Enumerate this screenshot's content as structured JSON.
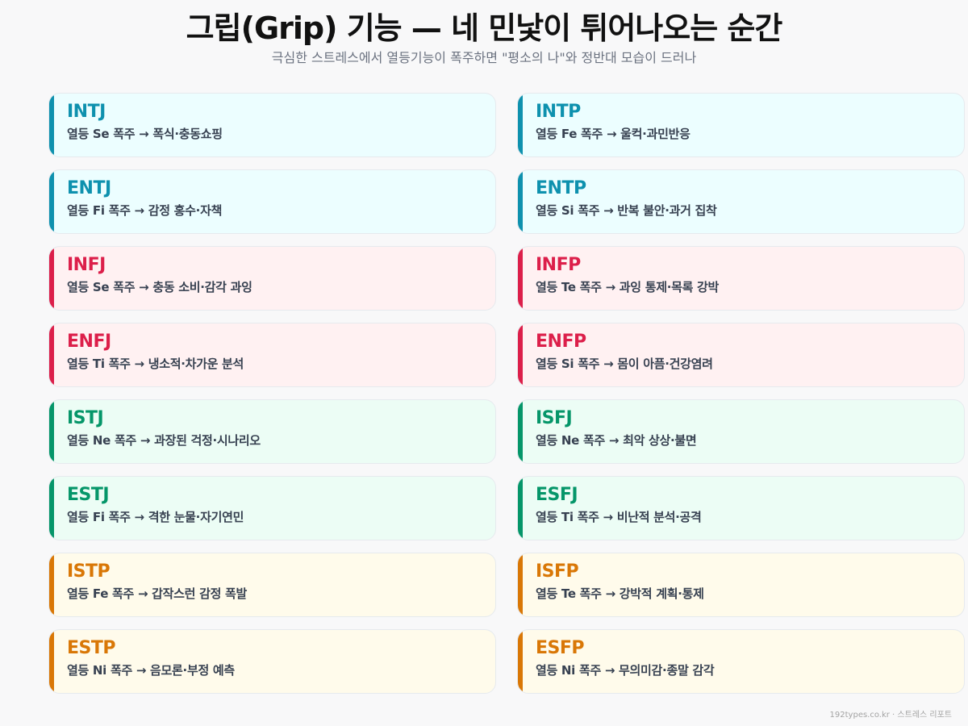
{
  "header": {
    "title": "그립(Grip) 기능 — 네 민낯이 튀어나오는 순간",
    "subtitle": "극심한 스트레스에서 열등기능이 폭주하면 \"평소의 나\"와 정반대 모습이 드러나"
  },
  "colors": {
    "teal": "#0e91ae",
    "red": "#dc1f4a",
    "green": "#059669",
    "amber": "#d97706"
  },
  "cards": [
    {
      "type": "INTJ",
      "desc": "열등 Se 폭주 → 폭식·충동쇼핑",
      "theme": "teal"
    },
    {
      "type": "INTP",
      "desc": "열등 Fe 폭주 → 울컥·과민반응",
      "theme": "teal"
    },
    {
      "type": "ENTJ",
      "desc": "열등 Fi 폭주 → 감정 홍수·자책",
      "theme": "teal"
    },
    {
      "type": "ENTP",
      "desc": "열등 Si 폭주 → 반복 불안·과거 집착",
      "theme": "teal"
    },
    {
      "type": "INFJ",
      "desc": "열등 Se 폭주 → 충동 소비·감각 과잉",
      "theme": "red"
    },
    {
      "type": "INFP",
      "desc": "열등 Te 폭주 → 과잉 통제·목록 강박",
      "theme": "red"
    },
    {
      "type": "ENFJ",
      "desc": "열등 Ti 폭주 → 냉소적·차가운 분석",
      "theme": "red"
    },
    {
      "type": "ENFP",
      "desc": "열등 Si 폭주 → 몸이 아픔·건강염려",
      "theme": "red"
    },
    {
      "type": "ISTJ",
      "desc": "열등 Ne 폭주 → 과장된 걱정·시나리오",
      "theme": "green"
    },
    {
      "type": "ISFJ",
      "desc": "열등 Ne 폭주 → 최악 상상·불면",
      "theme": "green"
    },
    {
      "type": "ESTJ",
      "desc": "열등 Fi 폭주 → 격한 눈물·자기연민",
      "theme": "green"
    },
    {
      "type": "ESFJ",
      "desc": "열등 Ti 폭주 → 비난적 분석·공격",
      "theme": "green"
    },
    {
      "type": "ISTP",
      "desc": "열등 Fe 폭주 → 갑작스런 감정 폭발",
      "theme": "amber"
    },
    {
      "type": "ISFP",
      "desc": "열등 Te 폭주 → 강박적 계획·통제",
      "theme": "amber"
    },
    {
      "type": "ESTP",
      "desc": "열등 Ni 폭주 → 음모론·부정 예측",
      "theme": "amber"
    },
    {
      "type": "ESFP",
      "desc": "열등 Ni 폭주 → 무의미감·종말 감각",
      "theme": "amber"
    }
  ],
  "footer": {
    "text": "192types.co.kr · 스트레스 리포트"
  }
}
